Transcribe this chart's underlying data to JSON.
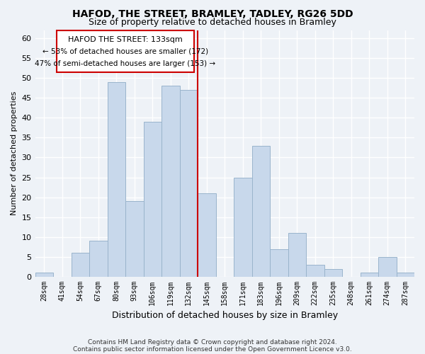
{
  "title": "HAFOD, THE STREET, BRAMLEY, TADLEY, RG26 5DD",
  "subtitle": "Size of property relative to detached houses in Bramley",
  "xlabel": "Distribution of detached houses by size in Bramley",
  "ylabel": "Number of detached properties",
  "footer_line1": "Contains HM Land Registry data © Crown copyright and database right 2024.",
  "footer_line2": "Contains public sector information licensed under the Open Government Licence v3.0.",
  "bin_labels": [
    "28sqm",
    "41sqm",
    "54sqm",
    "67sqm",
    "80sqm",
    "93sqm",
    "106sqm",
    "119sqm",
    "132sqm",
    "145sqm",
    "158sqm",
    "171sqm",
    "183sqm",
    "196sqm",
    "209sqm",
    "222sqm",
    "235sqm",
    "248sqm",
    "261sqm",
    "274sqm",
    "287sqm"
  ],
  "bar_heights": [
    1,
    0,
    6,
    9,
    49,
    19,
    39,
    48,
    47,
    21,
    0,
    25,
    33,
    7,
    11,
    3,
    2,
    0,
    1,
    5,
    1
  ],
  "bar_color": "#c8d8eb",
  "bar_edgecolor": "#9ab4cc",
  "vline_color": "#cc0000",
  "ylim": [
    0,
    62
  ],
  "yticks": [
    0,
    5,
    10,
    15,
    20,
    25,
    30,
    35,
    40,
    45,
    50,
    55,
    60
  ],
  "annotation_title": "HAFOD THE STREET: 133sqm",
  "annotation_line1": "← 53% of detached houses are smaller (172)",
  "annotation_line2": "47% of semi-detached houses are larger (153) →",
  "annotation_box_color": "#ffffff",
  "annotation_box_edgecolor": "#cc0000",
  "background_color": "#eef2f7",
  "grid_color": "#ffffff",
  "title_fontsize": 10,
  "subtitle_fontsize": 9
}
